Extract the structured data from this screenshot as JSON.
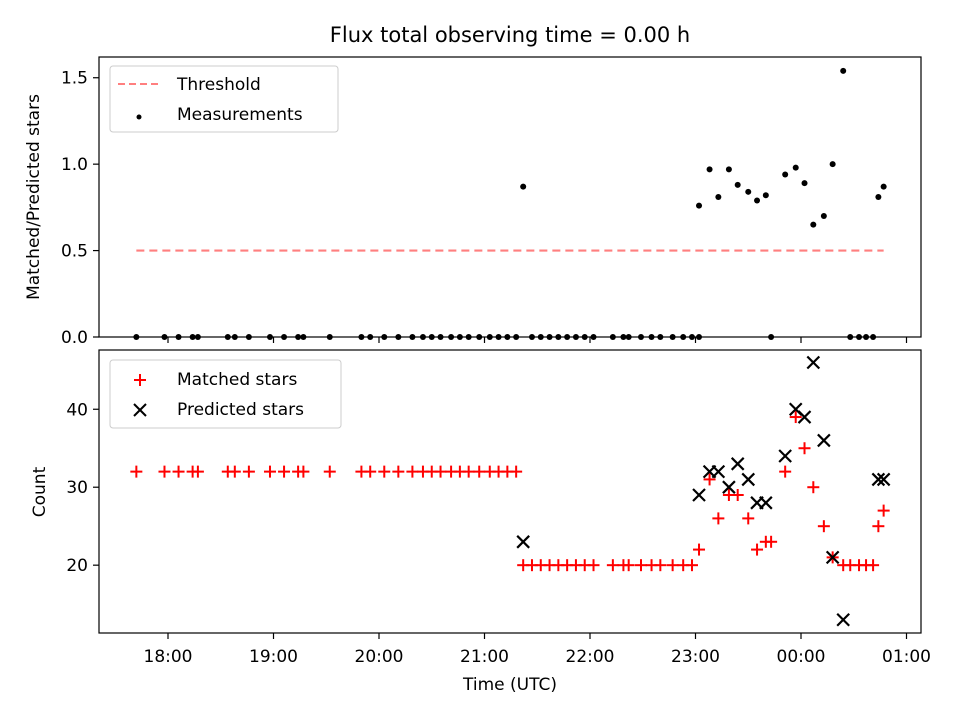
{
  "chart_data": [
    {
      "type": "scatter",
      "title": "Flux total observing time = 0.00 h",
      "xlabel": "",
      "ylabel": "Matched/Predicted stars",
      "ylim": [
        0,
        1.62
      ],
      "yticks": [
        "0.0",
        "0.5",
        "1.0",
        "1.5"
      ],
      "legend_position": "top-left",
      "series": [
        {
          "name": "Threshold",
          "kind": "dashed-line",
          "color": "#ff7f7f",
          "x_start": "17:42",
          "x_end": "00:47",
          "y": 0.5
        },
        {
          "name": "Measurements",
          "kind": "points",
          "color": "#000000",
          "points": [
            [
              "17:42",
              0
            ],
            [
              "17:58",
              0
            ],
            [
              "18:06",
              0
            ],
            [
              "18:14",
              0
            ],
            [
              "18:17",
              0
            ],
            [
              "18:34",
              0
            ],
            [
              "18:38",
              0
            ],
            [
              "18:46",
              0
            ],
            [
              "18:58",
              0
            ],
            [
              "19:06",
              0
            ],
            [
              "19:14",
              0
            ],
            [
              "19:17",
              0
            ],
            [
              "19:32",
              0
            ],
            [
              "19:50",
              0
            ],
            [
              "19:55",
              0
            ],
            [
              "20:03",
              0
            ],
            [
              "20:11",
              0
            ],
            [
              "20:19",
              0
            ],
            [
              "20:25",
              0
            ],
            [
              "20:30",
              0
            ],
            [
              "20:35",
              0
            ],
            [
              "20:41",
              0
            ],
            [
              "20:46",
              0
            ],
            [
              "20:51",
              0
            ],
            [
              "20:57",
              0
            ],
            [
              "21:03",
              0
            ],
            [
              "21:08",
              0
            ],
            [
              "21:13",
              0
            ],
            [
              "21:18",
              0
            ],
            [
              "21:22",
              0.87
            ],
            [
              "21:27",
              0
            ],
            [
              "21:32",
              0
            ],
            [
              "21:37",
              0
            ],
            [
              "21:42",
              0
            ],
            [
              "21:47",
              0
            ],
            [
              "21:52",
              0
            ],
            [
              "21:57",
              0
            ],
            [
              "22:02",
              0
            ],
            [
              "22:13",
              0
            ],
            [
              "22:19",
              0
            ],
            [
              "22:22",
              0
            ],
            [
              "22:29",
              0
            ],
            [
              "22:35",
              0
            ],
            [
              "22:40",
              0
            ],
            [
              "22:47",
              0
            ],
            [
              "22:53",
              0
            ],
            [
              "22:58",
              0
            ],
            [
              "23:02",
              0
            ],
            [
              "23:02",
              0.76
            ],
            [
              "23:08",
              0.97
            ],
            [
              "23:13",
              0.81
            ],
            [
              "23:19",
              0.97
            ],
            [
              "23:24",
              0.88
            ],
            [
              "23:30",
              0.84
            ],
            [
              "23:35",
              0.79
            ],
            [
              "23:40",
              0.82
            ],
            [
              "23:43",
              0
            ],
            [
              "23:51",
              0.94
            ],
            [
              "23:57",
              0.98
            ],
            [
              "00:02",
              0.89
            ],
            [
              "00:07",
              0.65
            ],
            [
              "00:13",
              0.7
            ],
            [
              "00:18",
              1.0
            ],
            [
              "00:24",
              1.54
            ],
            [
              "00:28",
              0
            ],
            [
              "00:33",
              0
            ],
            [
              "00:37",
              0
            ],
            [
              "00:41",
              0
            ],
            [
              "00:44",
              0.81
            ],
            [
              "00:47",
              0.87
            ]
          ]
        }
      ]
    },
    {
      "type": "scatter",
      "xlabel": "Time (UTC)",
      "ylabel": "Count",
      "ylim": [
        11.3,
        47.6
      ],
      "yticks": [
        "20",
        "30",
        "40"
      ],
      "xticks": [
        "18:00",
        "19:00",
        "20:00",
        "21:00",
        "22:00",
        "23:00",
        "00:00",
        "01:00"
      ],
      "legend_position": "top-left",
      "series": [
        {
          "name": "Matched stars",
          "marker": "plus",
          "color": "#ff0000",
          "points": [
            [
              "17:42",
              32
            ],
            [
              "17:58",
              32
            ],
            [
              "18:06",
              32
            ],
            [
              "18:14",
              32
            ],
            [
              "18:17",
              32
            ],
            [
              "18:34",
              32
            ],
            [
              "18:38",
              32
            ],
            [
              "18:46",
              32
            ],
            [
              "18:58",
              32
            ],
            [
              "19:06",
              32
            ],
            [
              "19:14",
              32
            ],
            [
              "19:17",
              32
            ],
            [
              "19:32",
              32
            ],
            [
              "19:50",
              32
            ],
            [
              "19:55",
              32
            ],
            [
              "20:03",
              32
            ],
            [
              "20:11",
              32
            ],
            [
              "20:19",
              32
            ],
            [
              "20:25",
              32
            ],
            [
              "20:30",
              32
            ],
            [
              "20:35",
              32
            ],
            [
              "20:41",
              32
            ],
            [
              "20:46",
              32
            ],
            [
              "20:51",
              32
            ],
            [
              "20:57",
              32
            ],
            [
              "21:03",
              32
            ],
            [
              "21:08",
              32
            ],
            [
              "21:13",
              32
            ],
            [
              "21:18",
              32
            ],
            [
              "21:22",
              20
            ],
            [
              "21:27",
              20
            ],
            [
              "21:32",
              20
            ],
            [
              "21:37",
              20
            ],
            [
              "21:42",
              20
            ],
            [
              "21:47",
              20
            ],
            [
              "21:52",
              20
            ],
            [
              "21:57",
              20
            ],
            [
              "22:02",
              20
            ],
            [
              "22:13",
              20
            ],
            [
              "22:19",
              20
            ],
            [
              "22:22",
              20
            ],
            [
              "22:29",
              20
            ],
            [
              "22:35",
              20
            ],
            [
              "22:40",
              20
            ],
            [
              "22:47",
              20
            ],
            [
              "22:53",
              20
            ],
            [
              "22:58",
              20
            ],
            [
              "23:02",
              22
            ],
            [
              "23:08",
              31
            ],
            [
              "23:13",
              26
            ],
            [
              "23:19",
              29
            ],
            [
              "23:24",
              29
            ],
            [
              "23:30",
              26
            ],
            [
              "23:35",
              22
            ],
            [
              "23:40",
              23
            ],
            [
              "23:43",
              23
            ],
            [
              "23:51",
              32
            ],
            [
              "23:57",
              39
            ],
            [
              "00:02",
              35
            ],
            [
              "00:07",
              30
            ],
            [
              "00:13",
              25
            ],
            [
              "00:18",
              21
            ],
            [
              "00:24",
              20
            ],
            [
              "00:28",
              20
            ],
            [
              "00:33",
              20
            ],
            [
              "00:37",
              20
            ],
            [
              "00:41",
              20
            ],
            [
              "00:44",
              25
            ],
            [
              "00:47",
              27
            ]
          ]
        },
        {
          "name": "Predicted stars",
          "marker": "x",
          "color": "#000000",
          "points": [
            [
              "21:22",
              23
            ],
            [
              "23:02",
              29
            ],
            [
              "23:08",
              32
            ],
            [
              "23:13",
              32
            ],
            [
              "23:19",
              30
            ],
            [
              "23:24",
              33
            ],
            [
              "23:30",
              31
            ],
            [
              "23:35",
              28
            ],
            [
              "23:40",
              28
            ],
            [
              "23:51",
              34
            ],
            [
              "23:57",
              40
            ],
            [
              "00:02",
              39
            ],
            [
              "00:07",
              46
            ],
            [
              "00:13",
              36
            ],
            [
              "00:18",
              21
            ],
            [
              "00:24",
              13
            ],
            [
              "00:44",
              31
            ],
            [
              "00:47",
              31
            ]
          ]
        }
      ]
    }
  ]
}
